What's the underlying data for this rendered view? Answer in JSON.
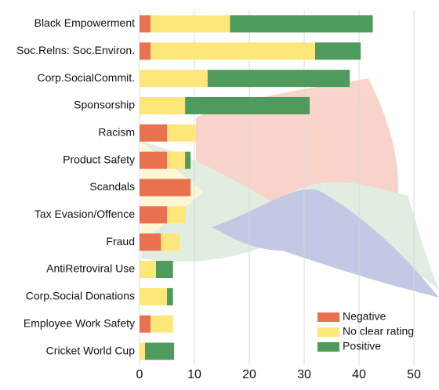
{
  "chart_data": {
    "type": "bar",
    "orientation": "horizontal",
    "stacked": true,
    "categories": [
      "Black Empowerment",
      "Soc.Relns: Soc.Environ.",
      "Corp.SocialCommit.",
      "Sponsorship",
      "Racism",
      "Product Safety",
      "Scandals",
      "Tax Evasion/Offence",
      "Fraud",
      "AntiRetroviral Use",
      "Corp.Social Donations",
      "Employee Work Safety",
      "Cricket World Cup"
    ],
    "series": [
      {
        "name": "Negative",
        "color": "#e9714f",
        "values": [
          2,
          2,
          0,
          0,
          5,
          5,
          9.3,
          5,
          3.9,
          0,
          0,
          2,
          0
        ]
      },
      {
        "name": "No clear rating",
        "color": "#fde77a",
        "values": [
          14.5,
          30,
          12.4,
          8.3,
          5.3,
          3.3,
          0,
          3.4,
          3.4,
          3,
          5,
          4.1,
          1
        ]
      },
      {
        "name": "Positive",
        "color": "#4f9a5d",
        "values": [
          26,
          8.3,
          25.9,
          22.7,
          0,
          1,
          0,
          0,
          0,
          3.1,
          1.1,
          0,
          5.3
        ]
      }
    ],
    "xlim": [
      0,
      50
    ],
    "xticks": [
      0,
      10,
      20,
      30,
      40,
      50
    ],
    "grid": true,
    "legend": "lower right"
  }
}
